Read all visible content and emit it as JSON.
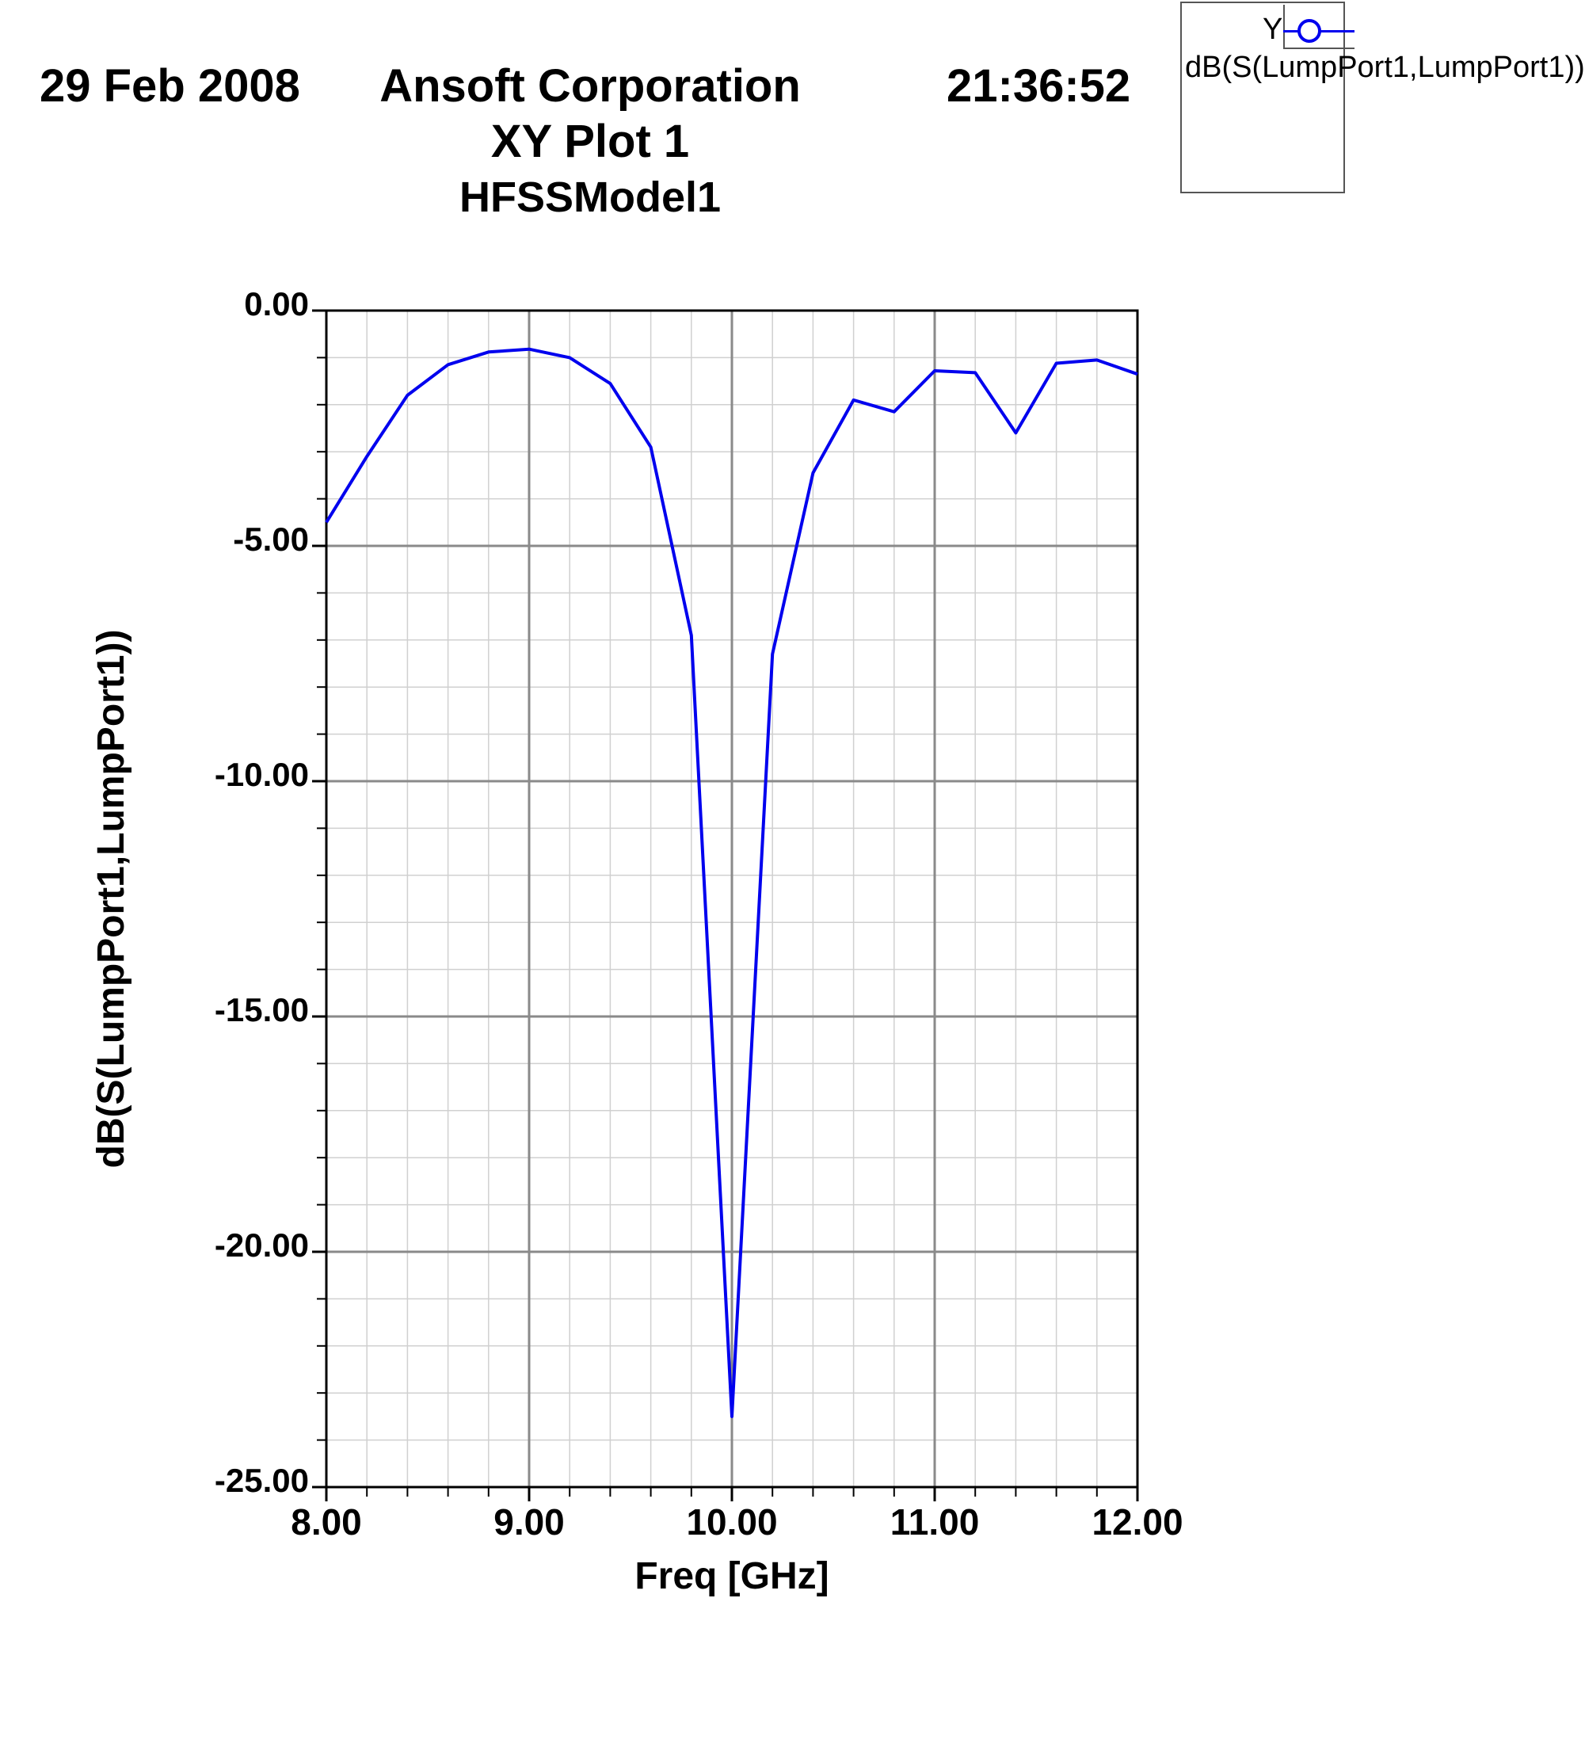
{
  "header": {
    "date": "29 Feb 2008",
    "company": "Ansoft Corporation",
    "time": "21:36:52",
    "plot_title": "XY Plot 1",
    "model": "HFSSModel1"
  },
  "legend": {
    "axis": "Y",
    "series_label": "dB(S(LumpPort1,LumpPort1))"
  },
  "colors": {
    "series": "#0000ee",
    "grid_major": "#8a8a8a",
    "grid_minor": "#d0d0d0",
    "frame": "#000000"
  },
  "chart_data": {
    "type": "line",
    "title": "XY Plot 1",
    "xlabel": "Freq [GHz]",
    "ylabel": "dB(S(LumpPort1,LumpPort1))",
    "xlim": [
      8.0,
      12.0
    ],
    "ylim": [
      -25.0,
      0.0
    ],
    "x_major_ticks": [
      8.0,
      9.0,
      10.0,
      11.0,
      12.0
    ],
    "x_tick_labels": [
      "8.00",
      "9.00",
      "10.00",
      "11.00",
      "12.00"
    ],
    "x_minor_step": 0.2,
    "y_major_ticks": [
      0.0,
      -5.0,
      -10.0,
      -15.0,
      -20.0,
      -25.0
    ],
    "y_tick_labels": [
      "0.00",
      "-5.00",
      "-10.00",
      "-15.00",
      "-20.00",
      "-25.00"
    ],
    "y_minor_step": 1.0,
    "grid": true,
    "legend_position": "top-right",
    "series": [
      {
        "name": "dB(S(LumpPort1,LumpPort1))",
        "marker": "circle",
        "x": [
          8.0,
          8.2,
          8.4,
          8.6,
          8.8,
          9.0,
          9.2,
          9.4,
          9.6,
          9.8,
          10.0,
          10.2,
          10.4,
          10.6,
          10.8,
          11.0,
          11.2,
          11.4,
          11.6,
          11.8,
          12.0
        ],
        "y": [
          -4.5,
          -3.1,
          -1.8,
          -1.15,
          -0.88,
          -0.82,
          -1.0,
          -1.55,
          -2.9,
          -6.9,
          -23.5,
          -7.3,
          -3.45,
          -1.9,
          -2.15,
          -1.28,
          -1.32,
          -2.6,
          -1.12,
          -1.05,
          -1.35
        ]
      }
    ]
  }
}
